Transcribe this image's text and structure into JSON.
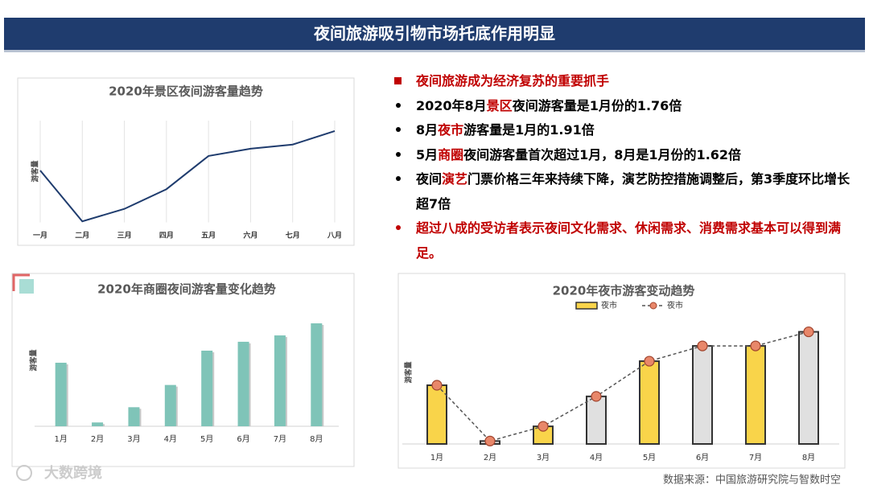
{
  "header": {
    "title": "夜间旅游吸引物市场托底作用明显"
  },
  "bullets": [
    {
      "color": "#c00000",
      "parts": [
        {
          "text": "夜间旅游成为经济复苏的重要抓手",
          "color": "#c00000"
        }
      ]
    },
    {
      "color": "#000000",
      "parts": [
        {
          "text": "2020年8月",
          "color": "#000000"
        },
        {
          "text": "景区",
          "color": "#c00000"
        },
        {
          "text": "夜间游客量是1月份的1.76倍",
          "color": "#000000"
        }
      ]
    },
    {
      "color": "#000000",
      "parts": [
        {
          "text": "8月",
          "color": "#000000"
        },
        {
          "text": "夜市",
          "color": "#c00000"
        },
        {
          "text": "游客量是1月的1.91倍",
          "color": "#000000"
        }
      ]
    },
    {
      "color": "#000000",
      "parts": [
        {
          "text": "5月",
          "color": "#000000"
        },
        {
          "text": "商圈",
          "color": "#c00000"
        },
        {
          "text": "夜间游客量首次超过1月，8月是1月份的1.62倍",
          "color": "#000000"
        }
      ]
    },
    {
      "color": "#000000",
      "parts": [
        {
          "text": "夜间",
          "color": "#000000"
        },
        {
          "text": "演艺",
          "color": "#c00000"
        },
        {
          "text": "门票价格三年来持续下降，演艺防控措施调整后，第3季度环比增长超7倍",
          "color": "#000000"
        }
      ]
    },
    {
      "color": "#c00000",
      "parts": [
        {
          "text": "超过八成的受访者表示夜间文化需求、休闲需求、消费需求基本可以得到满足。",
          "color": "#c00000"
        }
      ]
    }
  ],
  "source": "数据来源：中国旅游研究院与智数时空",
  "watermark": "大数跨境",
  "chart_data": [
    {
      "type": "line",
      "title": "2020年景区夜间游客量趋势",
      "y_label": "游客量",
      "categories": [
        "一月",
        "二月",
        "三月",
        "四月",
        "五月",
        "六月",
        "七月",
        "八月"
      ],
      "values": [
        1.0,
        0.02,
        0.26,
        0.64,
        1.28,
        1.42,
        1.5,
        1.76
      ],
      "color": "#1f3c6e",
      "ylim": [
        0,
        2
      ],
      "grid": true
    },
    {
      "type": "bar",
      "title": "2020年商圈夜间游客量变化趋势",
      "y_label": "游客量",
      "categories": [
        "1月",
        "2月",
        "3月",
        "4月",
        "5月",
        "6月",
        "7月",
        "8月"
      ],
      "values": [
        1.0,
        0.06,
        0.3,
        0.65,
        1.19,
        1.33,
        1.43,
        1.62
      ],
      "color": "#7fc4b8",
      "ylim": [
        0,
        1.8
      ],
      "grid": false
    },
    {
      "type": "combo",
      "title": "2020年夜市游客变动趋势",
      "y_label": "游客量",
      "categories": [
        "1月",
        "2月",
        "3月",
        "4月",
        "5月",
        "6月",
        "7月",
        "8月"
      ],
      "series": [
        {
          "name": "夜市",
          "type": "bar",
          "colors": [
            "#f9d44a",
            "#e0e0e0",
            "#f9d44a",
            "#e0e0e0",
            "#f9d44a",
            "#e0e0e0",
            "#f9d44a",
            "#e0e0e0"
          ],
          "values": [
            1.0,
            0.05,
            0.3,
            0.81,
            1.41,
            1.67,
            1.67,
            1.91
          ]
        },
        {
          "name": "夜市",
          "type": "line",
          "color": "#e8876a",
          "values": [
            1.0,
            0.05,
            0.3,
            0.81,
            1.41,
            1.67,
            1.67,
            1.91
          ]
        }
      ],
      "ylim": [
        0,
        2.1
      ],
      "grid": false,
      "legend": "top"
    }
  ]
}
